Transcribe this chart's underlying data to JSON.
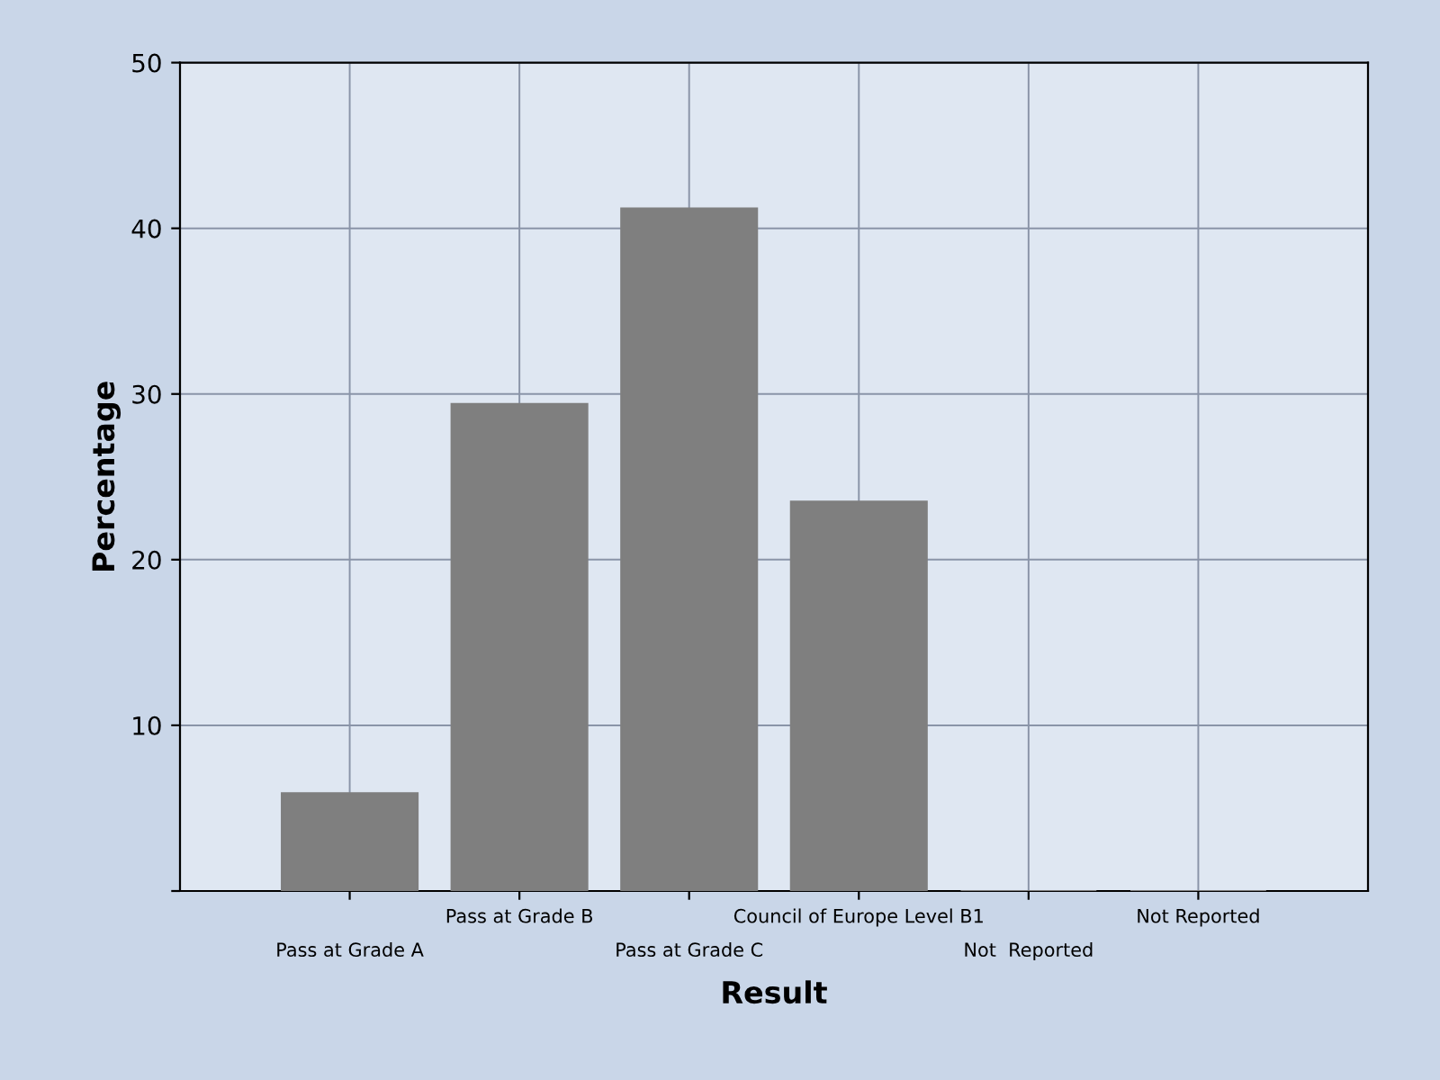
{
  "chart_data": {
    "type": "bar",
    "xlabel": "Result",
    "ylabel": "Percentage",
    "categories": [
      "Pass at Grade A",
      "Pass at Grade B",
      "Pass at Grade C",
      "Council of Europe Level B1",
      "Not  Reported",
      "Not Reported"
    ],
    "values": [
      5.9,
      29.4,
      41.2,
      23.5,
      0,
      0
    ],
    "color": "#7f7f7f",
    "ylim": [
      0,
      50
    ],
    "yticks": [
      {
        "value": 0,
        "label": null
      },
      10,
      20,
      30,
      40,
      50
    ],
    "grid": true
  }
}
